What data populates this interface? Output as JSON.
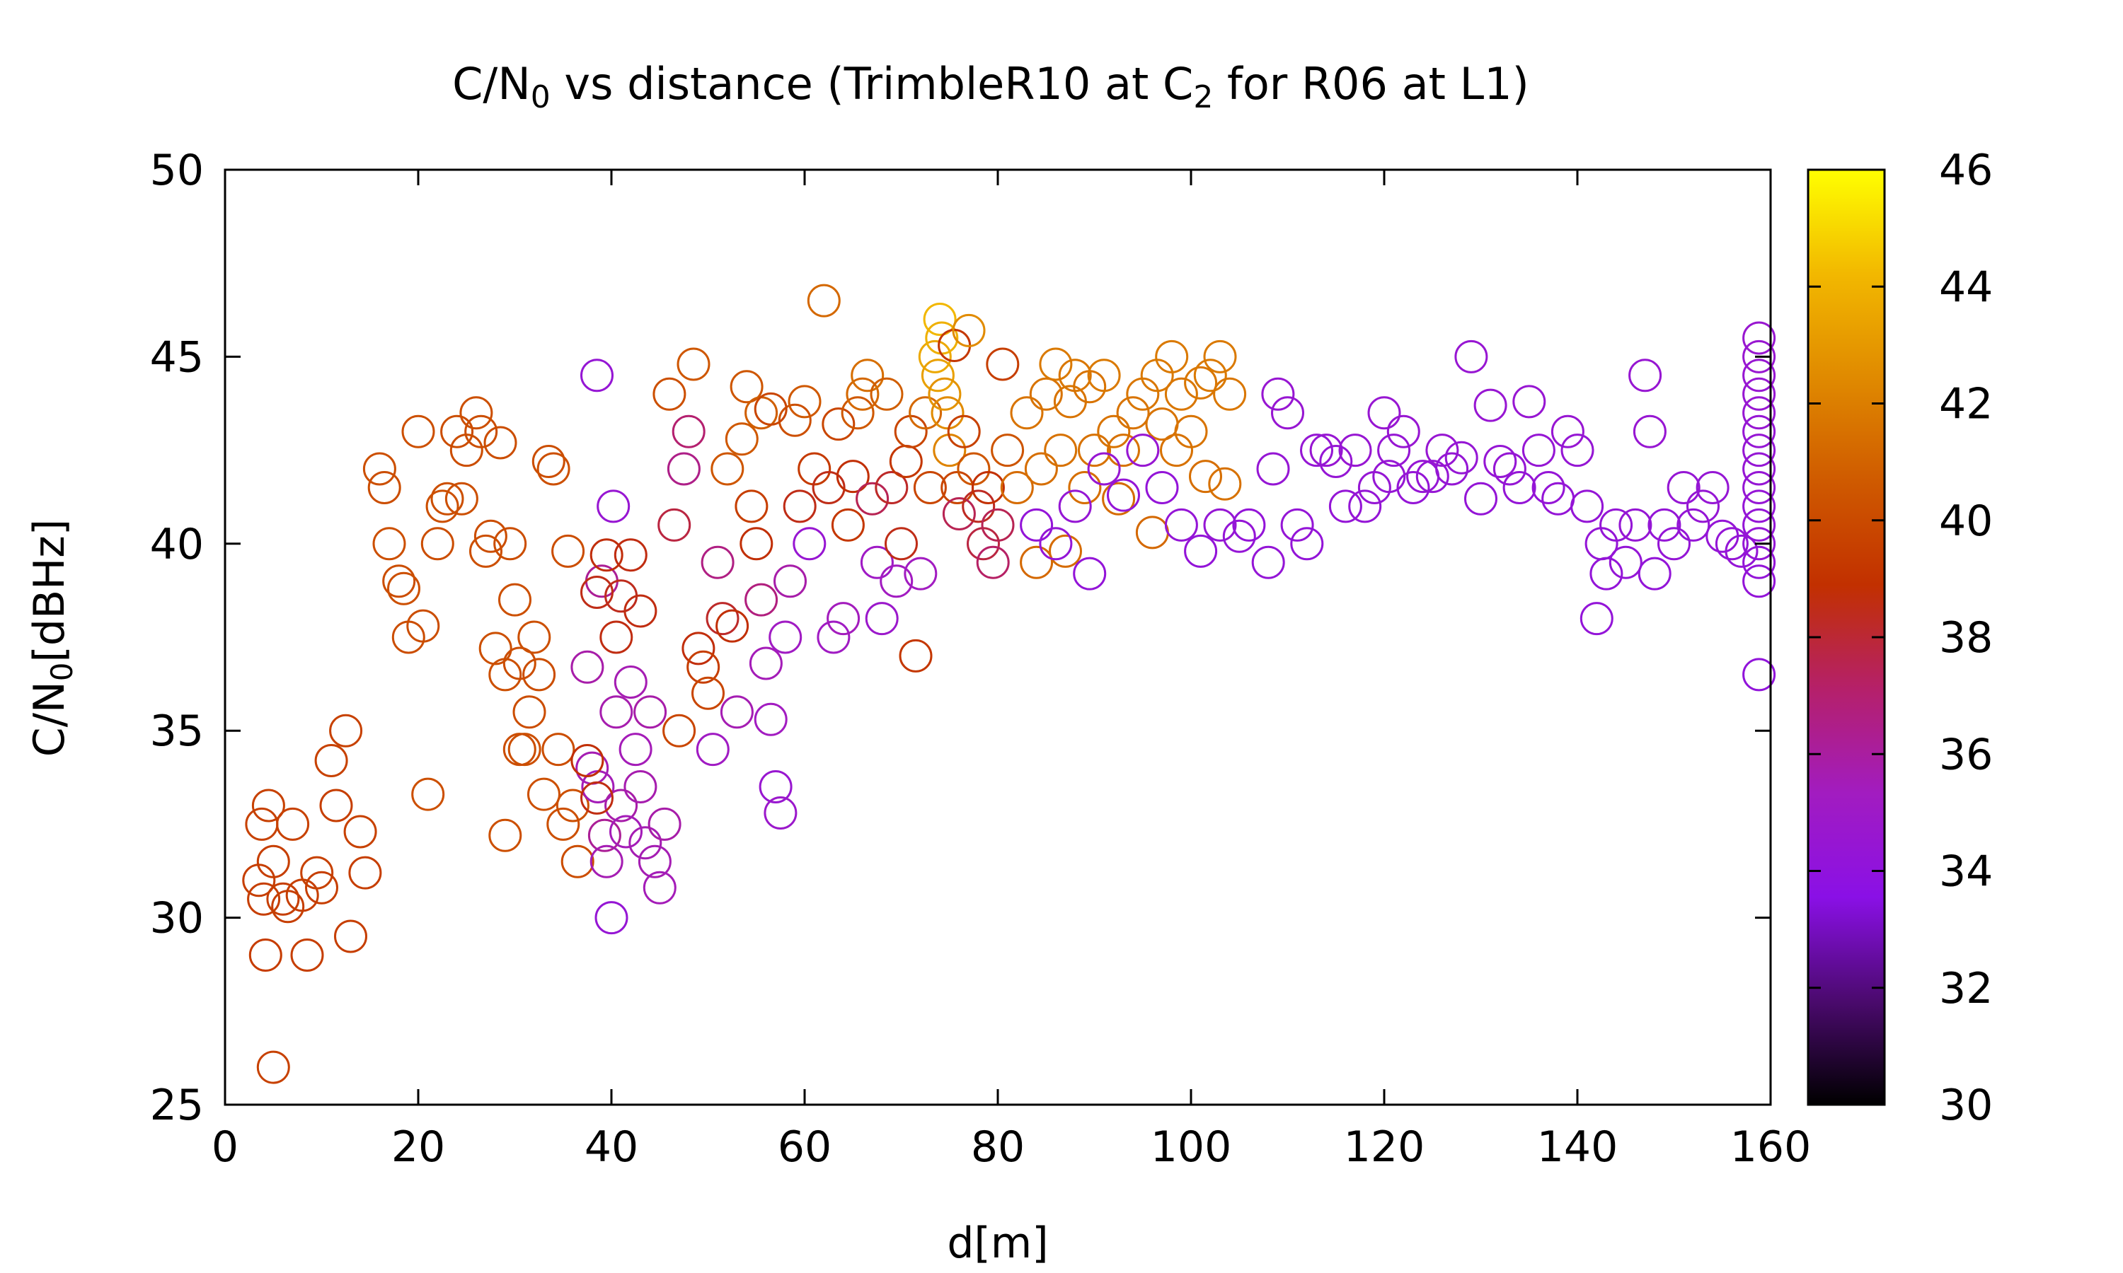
{
  "chart_data": {
    "type": "scatter",
    "title_prefix": "C/N",
    "title_sub": "0",
    "title_mid": " vs distance (TrimbleR10 at C",
    "title_sub2": "2",
    "title_suffix": " for R06 at L1)",
    "xlabel": "d[m]",
    "ylabel_prefix": "C/N",
    "ylabel_sub": "0",
    "ylabel_suffix": "[dBHz]",
    "xlim": [
      0,
      160
    ],
    "ylim": [
      25,
      50
    ],
    "xticks": [
      "0",
      "20",
      "40",
      "60",
      "80",
      "100",
      "120",
      "140",
      "160"
    ],
    "yticks": [
      "25",
      "30",
      "35",
      "40",
      "45",
      "50"
    ],
    "colorbar": {
      "range": [
        30,
        46
      ],
      "ticks": [
        "30",
        "32",
        "34",
        "36",
        "38",
        "40",
        "42",
        "44",
        "46"
      ],
      "palette": [
        "#000000",
        "#4b0a6e",
        "#8a10e6",
        "#a21cc0",
        "#b5206a",
        "#c23000",
        "#cf5a00",
        "#e08a00",
        "#f2b800",
        "#ffff00"
      ]
    },
    "marker": "open-circle",
    "points": [
      [
        3.5,
        31,
        39.5
      ],
      [
        4,
        30.5,
        39.5
      ],
      [
        4.5,
        33,
        39.6
      ],
      [
        3.8,
        32.5,
        39.6
      ],
      [
        5,
        31.5,
        39.5
      ],
      [
        4.2,
        29,
        39.4
      ],
      [
        5,
        26,
        39.6
      ],
      [
        6,
        30.5,
        39.5
      ],
      [
        7,
        32.5,
        39.6
      ],
      [
        8,
        30.6,
        39.5
      ],
      [
        8.5,
        29,
        39.5
      ],
      [
        9.5,
        31.2,
        39.6
      ],
      [
        10,
        30.8,
        39.5
      ],
      [
        11,
        34.2,
        39.6
      ],
      [
        11.5,
        33,
        39.5
      ],
      [
        12.5,
        35,
        39.6
      ],
      [
        13,
        29.5,
        39.5
      ],
      [
        14,
        32.3,
        39.6
      ],
      [
        14.5,
        31.2,
        39.5
      ],
      [
        6.5,
        30.3,
        39.5
      ],
      [
        16,
        42,
        40.2
      ],
      [
        16.5,
        41.5,
        40.1
      ],
      [
        17,
        40,
        40.2
      ],
      [
        18,
        39,
        40.1
      ],
      [
        18.5,
        38.8,
        40.2
      ],
      [
        19,
        37.5,
        40.1
      ],
      [
        20,
        43,
        40.2
      ],
      [
        20.5,
        37.8,
        40.1
      ],
      [
        21,
        33.3,
        40.2
      ],
      [
        22,
        40,
        40.1
      ],
      [
        22.5,
        41,
        40.2
      ],
      [
        23,
        41.2,
        40.2
      ],
      [
        24,
        43,
        40.1
      ],
      [
        24.5,
        41.2,
        40.2
      ],
      [
        25,
        42.5,
        40.1
      ],
      [
        26,
        43.5,
        40.2
      ],
      [
        26.5,
        43,
        40.1
      ],
      [
        27,
        39.8,
        40.2
      ],
      [
        27.5,
        40.2,
        40.1
      ],
      [
        28,
        37.2,
        40.2
      ],
      [
        28.5,
        42.7,
        40.1
      ],
      [
        29,
        36.5,
        40.2
      ],
      [
        29.5,
        40,
        40.1
      ],
      [
        30,
        38.5,
        40.2
      ],
      [
        30.5,
        36.8,
        40.1
      ],
      [
        31,
        34.5,
        40.2
      ],
      [
        31.5,
        35.5,
        40.1
      ],
      [
        32,
        37.5,
        40.2
      ],
      [
        32.5,
        36.5,
        40.1
      ],
      [
        33,
        33.3,
        40.2
      ],
      [
        33.5,
        42.2,
        40.1
      ],
      [
        34,
        42,
        40.2
      ],
      [
        34.5,
        34.5,
        40.1
      ],
      [
        35,
        32.5,
        40.2
      ],
      [
        35.5,
        39.8,
        40.1
      ],
      [
        36,
        33,
        40.2
      ],
      [
        36.5,
        31.5,
        40.1
      ],
      [
        29,
        32.2,
        40.2
      ],
      [
        30.5,
        34.5,
        40.1
      ],
      [
        37.5,
        36.7,
        35.8
      ],
      [
        38,
        34,
        35.6
      ],
      [
        38.5,
        44.5,
        34.4
      ],
      [
        38.6,
        33.5,
        35.5
      ],
      [
        39,
        39,
        36.2
      ],
      [
        39.3,
        32.2,
        36.2
      ],
      [
        39.5,
        31.5,
        35.6
      ],
      [
        40,
        30,
        34.4
      ],
      [
        40.2,
        41,
        34.5
      ],
      [
        40.5,
        35.5,
        35.7
      ],
      [
        41,
        33,
        35.8
      ],
      [
        41.5,
        32.3,
        35.5
      ],
      [
        42,
        36.3,
        35.6
      ],
      [
        42.5,
        34.5,
        35.5
      ],
      [
        43,
        33.5,
        35.7
      ],
      [
        43.5,
        32,
        35.6
      ],
      [
        44,
        35.5,
        35.8
      ],
      [
        44.5,
        31.5,
        35.6
      ],
      [
        45,
        30.8,
        35.5
      ],
      [
        45.5,
        32.5,
        35.8
      ],
      [
        38.5,
        38.7,
        38.5
      ],
      [
        39.5,
        39.7,
        38.7
      ],
      [
        40.5,
        37.5,
        38.6
      ],
      [
        41,
        38.6,
        38.4
      ],
      [
        42,
        39.7,
        38.6
      ],
      [
        43,
        38.2,
        38.6
      ],
      [
        37.5,
        34.2,
        38.8
      ],
      [
        38.5,
        33.2,
        38.6
      ],
      [
        46,
        44,
        40.2
      ],
      [
        46.5,
        40.5,
        37.8
      ],
      [
        47,
        35,
        39.8
      ],
      [
        47.5,
        42,
        36.5
      ],
      [
        48,
        43,
        37
      ],
      [
        48.5,
        44.8,
        40.5
      ],
      [
        49,
        37.2,
        38.7
      ],
      [
        49.5,
        36.7,
        39.5
      ],
      [
        50,
        36,
        39.8
      ],
      [
        50.5,
        34.5,
        35.2
      ],
      [
        51,
        39.5,
        36.6
      ],
      [
        51.5,
        38,
        38.2
      ],
      [
        52,
        42,
        40.5
      ],
      [
        52.5,
        37.8,
        38.8
      ],
      [
        53,
        35.5,
        35.6
      ],
      [
        53.5,
        42.8,
        40.6
      ],
      [
        54,
        44.2,
        40.5
      ],
      [
        54.5,
        41,
        39.5
      ],
      [
        55,
        40,
        38.8
      ],
      [
        55.5,
        38.5,
        36.7
      ],
      [
        56,
        36.8,
        35.5
      ],
      [
        56.5,
        35.3,
        35.3
      ],
      [
        57,
        33.5,
        34.6
      ],
      [
        57.5,
        32.8,
        34.8
      ],
      [
        58,
        37.5,
        35.2
      ],
      [
        58.5,
        39,
        35.8
      ],
      [
        59,
        43.3,
        40.2
      ],
      [
        59.5,
        41,
        38.5
      ],
      [
        55.5,
        43.5,
        40.8
      ],
      [
        56.5,
        43.6,
        39.8
      ],
      [
        60,
        43.8,
        40.6
      ],
      [
        60.5,
        40,
        34.5
      ],
      [
        61,
        42,
        39.3
      ],
      [
        62,
        46.5,
        41.2
      ],
      [
        62.5,
        41.5,
        38.5
      ],
      [
        63,
        37.5,
        35.2
      ],
      [
        63.5,
        43.2,
        39.8
      ],
      [
        64,
        38,
        35.4
      ],
      [
        64.5,
        40.5,
        39.2
      ],
      [
        65,
        41.8,
        38.8
      ],
      [
        65.5,
        43.5,
        40.6
      ],
      [
        66,
        44,
        41.2
      ],
      [
        66.5,
        44.5,
        41.4
      ],
      [
        67,
        41.2,
        37.5
      ],
      [
        67.5,
        39.5,
        35.1
      ],
      [
        68,
        38,
        34.8
      ],
      [
        68.5,
        44,
        40.8
      ],
      [
        69,
        41.5,
        38.2
      ],
      [
        69.5,
        39,
        35.3
      ],
      [
        70,
        40,
        38.5
      ],
      [
        70.5,
        42.2,
        39.2
      ],
      [
        71,
        43,
        39.8
      ],
      [
        71.5,
        37,
        39.2
      ],
      [
        72,
        39.2,
        35.3
      ],
      [
        72.5,
        43.5,
        41.2
      ],
      [
        73,
        41.5,
        39.8
      ],
      [
        73.5,
        45,
        43.6
      ],
      [
        73.8,
        44.5,
        43.3
      ],
      [
        74,
        46,
        44.2
      ],
      [
        74.2,
        45.5,
        43.9
      ],
      [
        74.5,
        44,
        42.8
      ],
      [
        74.8,
        43.5,
        42.5
      ],
      [
        75,
        42.5,
        42.2
      ],
      [
        75.5,
        45.3,
        39.2
      ],
      [
        75.8,
        41.5,
        39.8
      ],
      [
        76,
        40.8,
        37.5
      ],
      [
        76.5,
        43,
        39.6
      ],
      [
        77,
        45.7,
        42.5
      ],
      [
        77.5,
        42,
        40.5
      ],
      [
        78,
        41,
        38.3
      ],
      [
        78.5,
        40,
        37.8
      ],
      [
        79,
        41.5,
        38.9
      ],
      [
        79.5,
        39.5,
        37.2
      ],
      [
        80,
        40.5,
        37.5
      ],
      [
        80.5,
        44.8,
        39.5
      ],
      [
        81,
        42.5,
        40.4
      ],
      [
        82,
        41.5,
        41.3
      ],
      [
        83,
        43.5,
        41.6
      ],
      [
        84,
        39.5,
        41.2
      ],
      [
        84.5,
        42,
        41.4
      ],
      [
        85,
        44,
        41.6
      ],
      [
        86,
        44.8,
        41.8
      ],
      [
        86.5,
        42.5,
        41.5
      ],
      [
        87,
        39.8,
        41.3
      ],
      [
        87.5,
        43.8,
        41.6
      ],
      [
        88,
        44.5,
        41.7
      ],
      [
        89,
        41.5,
        41.4
      ],
      [
        89.5,
        44.2,
        41.6
      ],
      [
        90,
        42.5,
        41.5
      ],
      [
        91,
        44.5,
        41.8
      ],
      [
        92,
        43,
        41.6
      ],
      [
        92.5,
        41.2,
        41.3
      ],
      [
        93,
        42.5,
        41.5
      ],
      [
        94,
        43.5,
        41.6
      ],
      [
        95,
        44,
        41.7
      ],
      [
        96,
        40.3,
        41.2
      ],
      [
        96.5,
        44.5,
        41.8
      ],
      [
        97,
        43.2,
        41.6
      ],
      [
        98,
        45,
        41.8
      ],
      [
        98.5,
        42.5,
        41.5
      ],
      [
        99,
        44,
        41.7
      ],
      [
        100,
        43,
        41.6
      ],
      [
        101,
        44.3,
        41.7
      ],
      [
        101.5,
        41.8,
        41.4
      ],
      [
        102,
        44.5,
        41.8
      ],
      [
        103,
        45,
        41.8
      ],
      [
        103.5,
        41.6,
        41.5
      ],
      [
        104,
        44,
        41.7
      ],
      [
        84,
        40.5,
        34.2
      ],
      [
        86,
        40,
        34.3
      ],
      [
        88,
        41,
        34.4
      ],
      [
        89.5,
        39.2,
        34.2
      ],
      [
        91,
        42,
        34.5
      ],
      [
        93,
        41.3,
        34.3
      ],
      [
        95,
        42.5,
        34.5
      ],
      [
        97,
        41.5,
        34.2
      ],
      [
        99,
        40.5,
        34.3
      ],
      [
        101,
        39.8,
        34.2
      ],
      [
        103,
        40.5,
        34.4
      ],
      [
        105,
        40.2,
        34.3
      ],
      [
        106,
        40.5,
        34.2
      ],
      [
        108,
        39.5,
        34.3
      ],
      [
        108.5,
        42,
        34.4
      ],
      [
        109,
        44,
        34.5
      ],
      [
        110,
        43.5,
        34.5
      ],
      [
        111,
        40.5,
        34.3
      ],
      [
        112,
        40,
        34.2
      ],
      [
        113,
        42.5,
        34.4
      ],
      [
        114,
        42.5,
        34.5
      ],
      [
        115,
        42.2,
        34.4
      ],
      [
        116,
        41,
        34.3
      ],
      [
        117,
        42.5,
        34.5
      ],
      [
        118,
        41,
        34.3
      ],
      [
        119,
        41.5,
        34.4
      ],
      [
        120,
        43.5,
        34.5
      ],
      [
        120.5,
        41.8,
        34.4
      ],
      [
        121,
        42.5,
        34.4
      ],
      [
        122,
        43,
        34.5
      ],
      [
        123,
        41.5,
        34.3
      ],
      [
        124,
        41.8,
        34.4
      ],
      [
        125,
        41.8,
        34.4
      ],
      [
        126,
        42.5,
        34.5
      ],
      [
        127,
        42,
        34.4
      ],
      [
        128,
        42.3,
        34.4
      ],
      [
        129,
        45,
        34.5
      ],
      [
        130,
        41.2,
        34.3
      ],
      [
        131,
        43.7,
        34.5
      ],
      [
        132,
        42.2,
        34.4
      ],
      [
        133,
        42,
        34.4
      ],
      [
        134,
        41.5,
        34.3
      ],
      [
        135,
        43.8,
        34.5
      ],
      [
        136,
        42.5,
        34.4
      ],
      [
        137,
        41.5,
        34.3
      ],
      [
        138,
        41.2,
        34.3
      ],
      [
        139,
        43,
        34.5
      ],
      [
        140,
        42.5,
        34.4
      ],
      [
        141,
        41,
        34.3
      ],
      [
        142,
        38,
        34.2
      ],
      [
        142.5,
        40,
        34.3
      ],
      [
        143,
        39.2,
        34.2
      ],
      [
        144,
        40.5,
        34.3
      ],
      [
        145,
        39.5,
        34.3
      ],
      [
        146,
        40.5,
        34.4
      ],
      [
        147,
        44.5,
        34.5
      ],
      [
        147.5,
        43,
        34.5
      ],
      [
        148,
        39.2,
        34.2
      ],
      [
        149,
        40.5,
        34.3
      ],
      [
        150,
        40,
        34.3
      ],
      [
        151,
        41.5,
        34.4
      ],
      [
        152,
        40.5,
        34.3
      ],
      [
        153,
        41,
        34.4
      ],
      [
        154,
        41.5,
        34.4
      ],
      [
        155,
        40.2,
        34.3
      ],
      [
        156,
        40,
        34.3
      ],
      [
        157,
        39.8,
        34.3
      ],
      [
        158.8,
        45.5,
        34.6
      ],
      [
        158.8,
        45,
        34.6
      ],
      [
        158.8,
        44.5,
        34.5
      ],
      [
        158.8,
        44,
        34.5
      ],
      [
        158.8,
        43.5,
        34.5
      ],
      [
        158.8,
        43,
        34.4
      ],
      [
        158.8,
        42.5,
        34.4
      ],
      [
        158.8,
        42,
        34.4
      ],
      [
        158.8,
        41.5,
        34.4
      ],
      [
        158.8,
        41,
        34.3
      ],
      [
        158.8,
        40.5,
        34.3
      ],
      [
        158.8,
        40,
        34.3
      ],
      [
        158.8,
        39.5,
        34.2
      ],
      [
        158.8,
        39,
        34.2
      ],
      [
        158.8,
        36.5,
        34.1
      ]
    ]
  }
}
